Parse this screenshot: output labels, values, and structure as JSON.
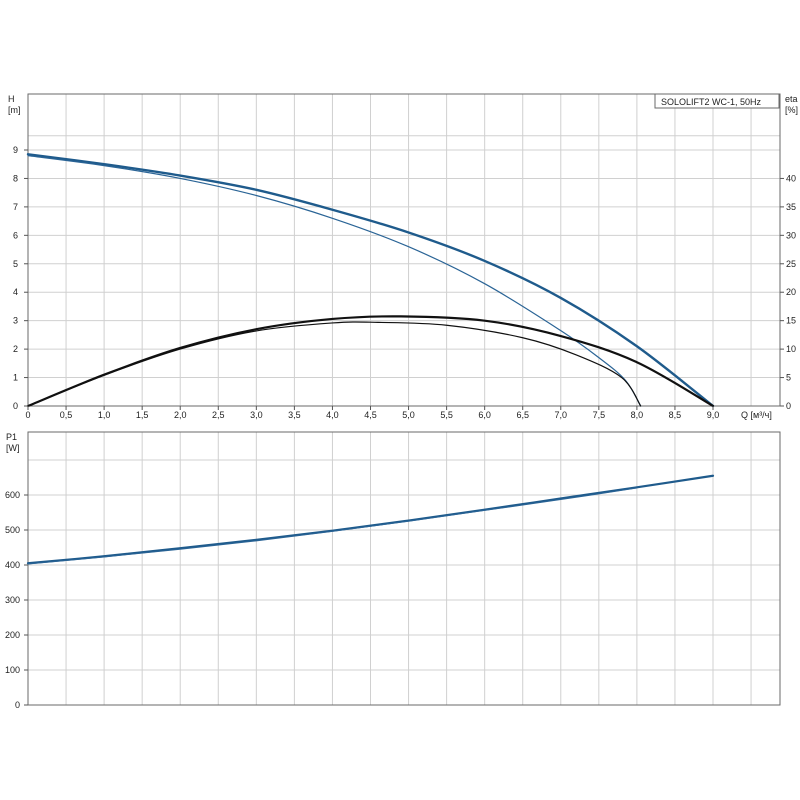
{
  "chart_data": [
    {
      "type": "line",
      "title": "SOLOLIFT2 WC-1, 50Hz",
      "ylabel_left": [
        "H",
        "[m]"
      ],
      "ylabel_right": [
        "eta",
        "[%]"
      ],
      "xlabel": "Q [м³/ч]",
      "xlim": [
        0,
        9
      ],
      "ylim": [
        0,
        9.5
      ],
      "y2lim": [
        0,
        47.5
      ],
      "grid": true,
      "x_ticks": [
        "0",
        "0,5",
        "1,0",
        "1,5",
        "2,0",
        "2,5",
        "3,0",
        "3,5",
        "4,0",
        "4,5",
        "5,0",
        "5,5",
        "6,0",
        "6,5",
        "7,0",
        "7,5",
        "8,0",
        "8,5",
        "9,0"
      ],
      "y_ticks": [
        "0",
        "1",
        "2",
        "3",
        "4",
        "5",
        "6",
        "7",
        "8",
        "9"
      ],
      "y2_ticks": [
        "0",
        "5",
        "10",
        "15",
        "20",
        "25",
        "30",
        "35",
        "40"
      ],
      "series": [
        {
          "axis": "left",
          "color": "#1f5b8c",
          "width": 2.4,
          "x": [
            0,
            1,
            2,
            3,
            4,
            5,
            6,
            7,
            8,
            9
          ],
          "y": [
            8.85,
            8.5,
            8.1,
            7.6,
            6.9,
            6.1,
            5.1,
            3.8,
            2.1,
            0
          ]
        },
        {
          "axis": "left",
          "color": "#2a6496",
          "width": 1.2,
          "x": [
            0,
            1,
            2,
            3,
            4,
            5,
            6,
            7,
            7.5,
            7.85,
            8.05
          ],
          "y": [
            8.8,
            8.45,
            8.0,
            7.4,
            6.6,
            5.6,
            4.3,
            2.65,
            1.7,
            0.9,
            0
          ]
        },
        {
          "axis": "right",
          "color": "#111111",
          "width": 2.2,
          "x": [
            0,
            1,
            2,
            3,
            4,
            4.9,
            6,
            7,
            8,
            9
          ],
          "y": [
            0,
            5.5,
            10.2,
            13.5,
            15.3,
            15.75,
            15.0,
            12.3,
            7.7,
            0
          ]
        },
        {
          "axis": "right",
          "color": "#111111",
          "width": 1.2,
          "x": [
            0,
            1,
            2,
            3,
            4,
            4.6,
            5.5,
            6.5,
            7.2,
            7.8,
            8.05
          ],
          "y": [
            0,
            5.4,
            10.0,
            13.2,
            14.6,
            14.7,
            14.2,
            12.0,
            9.0,
            5.0,
            0
          ]
        }
      ]
    },
    {
      "type": "line",
      "ylabel": [
        "P1",
        "[W]"
      ],
      "xlim": [
        0,
        9
      ],
      "ylim": [
        0,
        700
      ],
      "grid": true,
      "y_ticks": [
        "0",
        "100",
        "200",
        "300",
        "400",
        "500",
        "600"
      ],
      "series": [
        {
          "color": "#1f5b8c",
          "width": 2.2,
          "x": [
            0,
            1,
            2,
            3,
            4,
            5,
            6,
            7,
            8,
            9
          ],
          "y": [
            405,
            425,
            448,
            472,
            498,
            527,
            558,
            590,
            622,
            655
          ]
        },
        {
          "color": "#2a6496",
          "width": 1.0,
          "x": [
            0,
            1,
            2,
            3,
            4,
            5,
            6,
            7,
            8
          ],
          "y": [
            403,
            423,
            445,
            469,
            496,
            525,
            556,
            587,
            620
          ]
        }
      ]
    }
  ]
}
